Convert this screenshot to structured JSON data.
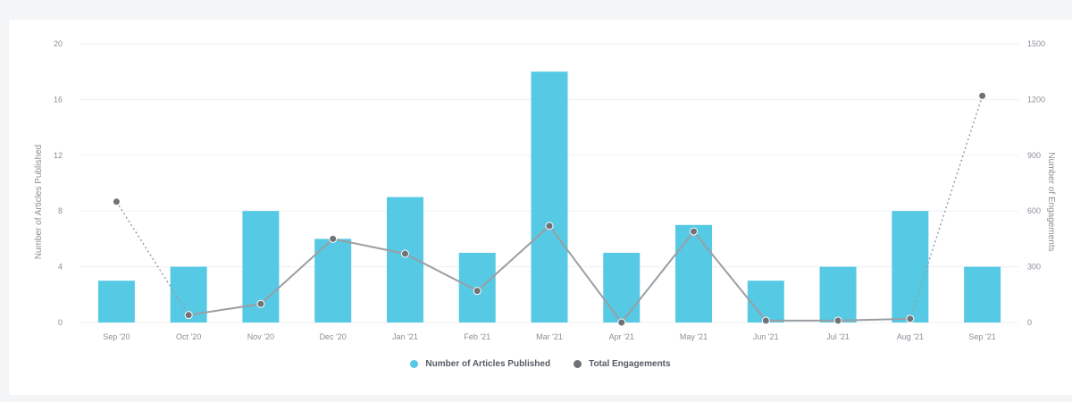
{
  "colors": {
    "bar": "#56c9e4",
    "line": "#9a9ea3",
    "point": "#6f7378",
    "grid": "#eef0f2",
    "tick": "#8a8f96"
  },
  "chart_data": {
    "type": "bar",
    "categories": [
      "Sep '20",
      "Oct '20",
      "Nov '20",
      "Dec '20",
      "Jan '21",
      "Feb '21",
      "Mar '21",
      "Apr '21",
      "May '21",
      "Jun '21",
      "Jul '21",
      "Aug '21",
      "Sep '21"
    ],
    "series": [
      {
        "name": "Number of Articles Published",
        "type": "bar",
        "axis": "left",
        "values": [
          3,
          4,
          8,
          6,
          9,
          5,
          18,
          5,
          7,
          3,
          4,
          8,
          4
        ]
      },
      {
        "name": "Total Engagements",
        "type": "line",
        "axis": "right",
        "values": [
          650,
          40,
          100,
          450,
          370,
          170,
          520,
          0,
          490,
          10,
          10,
          20,
          1220
        ],
        "dotted_segments": [
          [
            0,
            1
          ],
          [
            11,
            12
          ]
        ]
      }
    ],
    "ylabel": "Number of Articles Published",
    "ylim": [
      0,
      20
    ],
    "yticks": [
      0,
      4,
      8,
      12,
      16,
      20
    ],
    "y2label": "Number of Engagements",
    "y2lim": [
      0,
      1500
    ],
    "y2ticks": [
      0,
      300,
      600,
      900,
      1200,
      1500
    ],
    "grid": true,
    "legend_position": "bottom-center"
  }
}
